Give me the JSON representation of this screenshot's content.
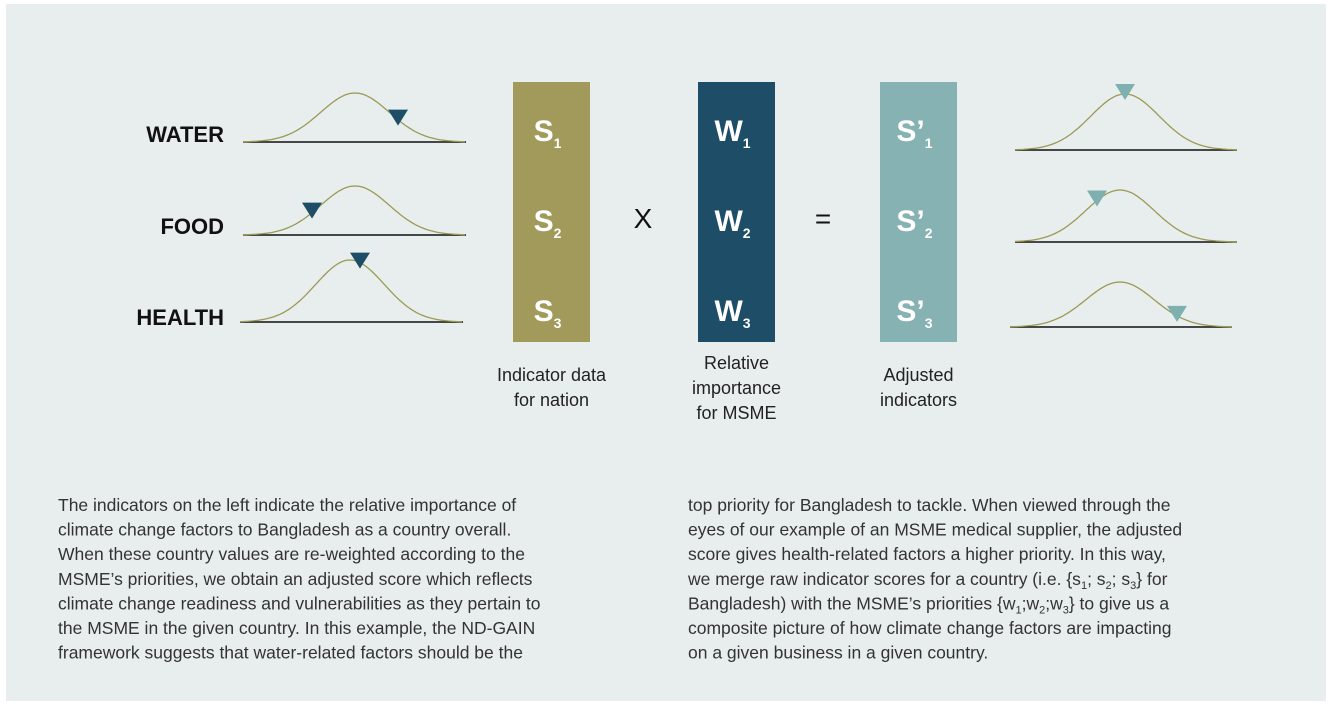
{
  "rows": [
    "WATER",
    "FOOD",
    "HEALTH"
  ],
  "columns": [
    {
      "symbols": [
        {
          "letter": "S",
          "sub": "1"
        },
        {
          "letter": "S",
          "sub": "2"
        },
        {
          "letter": "S",
          "sub": "3"
        }
      ],
      "caption": [
        "Indicator data",
        "for nation"
      ]
    },
    {
      "symbols": [
        {
          "letter": "W",
          "sub": "1"
        },
        {
          "letter": "W",
          "sub": "2"
        },
        {
          "letter": "W",
          "sub": "3"
        }
      ],
      "caption": [
        "Relative",
        "importance",
        "for MSME"
      ]
    },
    {
      "symbols": [
        {
          "letter": "S’",
          "sub": "1"
        },
        {
          "letter": "S’",
          "sub": "2"
        },
        {
          "letter": "S’",
          "sub": "3"
        }
      ],
      "caption": [
        "Adjusted",
        "indicators"
      ]
    }
  ],
  "operators": [
    "X",
    "="
  ],
  "paragraphs": [
    [
      [
        "The indicators on the left indicate the relative importance of"
      ],
      [
        "climate change factors to Bangladesh as a country overall."
      ],
      [
        "When these country values are re-weighted according to the"
      ],
      [
        "MSME’s priorities, we obtain an adjusted score which reflects"
      ],
      [
        "climate change readiness and vulnerabilities as they pertain to"
      ],
      [
        "the MSME in the given country. In this example, the ND-GAIN"
      ],
      [
        "framework suggests that water-related factors should be the"
      ]
    ],
    [
      [
        "top priority for Bangladesh to tackle. When viewed through the"
      ],
      [
        "eyes of our example of an MSME medical supplier, the adjusted"
      ],
      [
        "score gives health-related factors a higher priority. In this way,"
      ],
      [
        "we merge raw indicator scores for a country (i.e. {s",
        "1",
        "; s",
        "2",
        "; s",
        "3",
        "} for"
      ],
      [
        "Bangladesh) with the MSME’s priorities {w",
        "1",
        ";w",
        "2",
        ";w",
        "3",
        "} to give us a"
      ],
      [
        "composite picture of how climate change factors are impacting"
      ],
      [
        "on a given business in a given country."
      ]
    ]
  ]
}
